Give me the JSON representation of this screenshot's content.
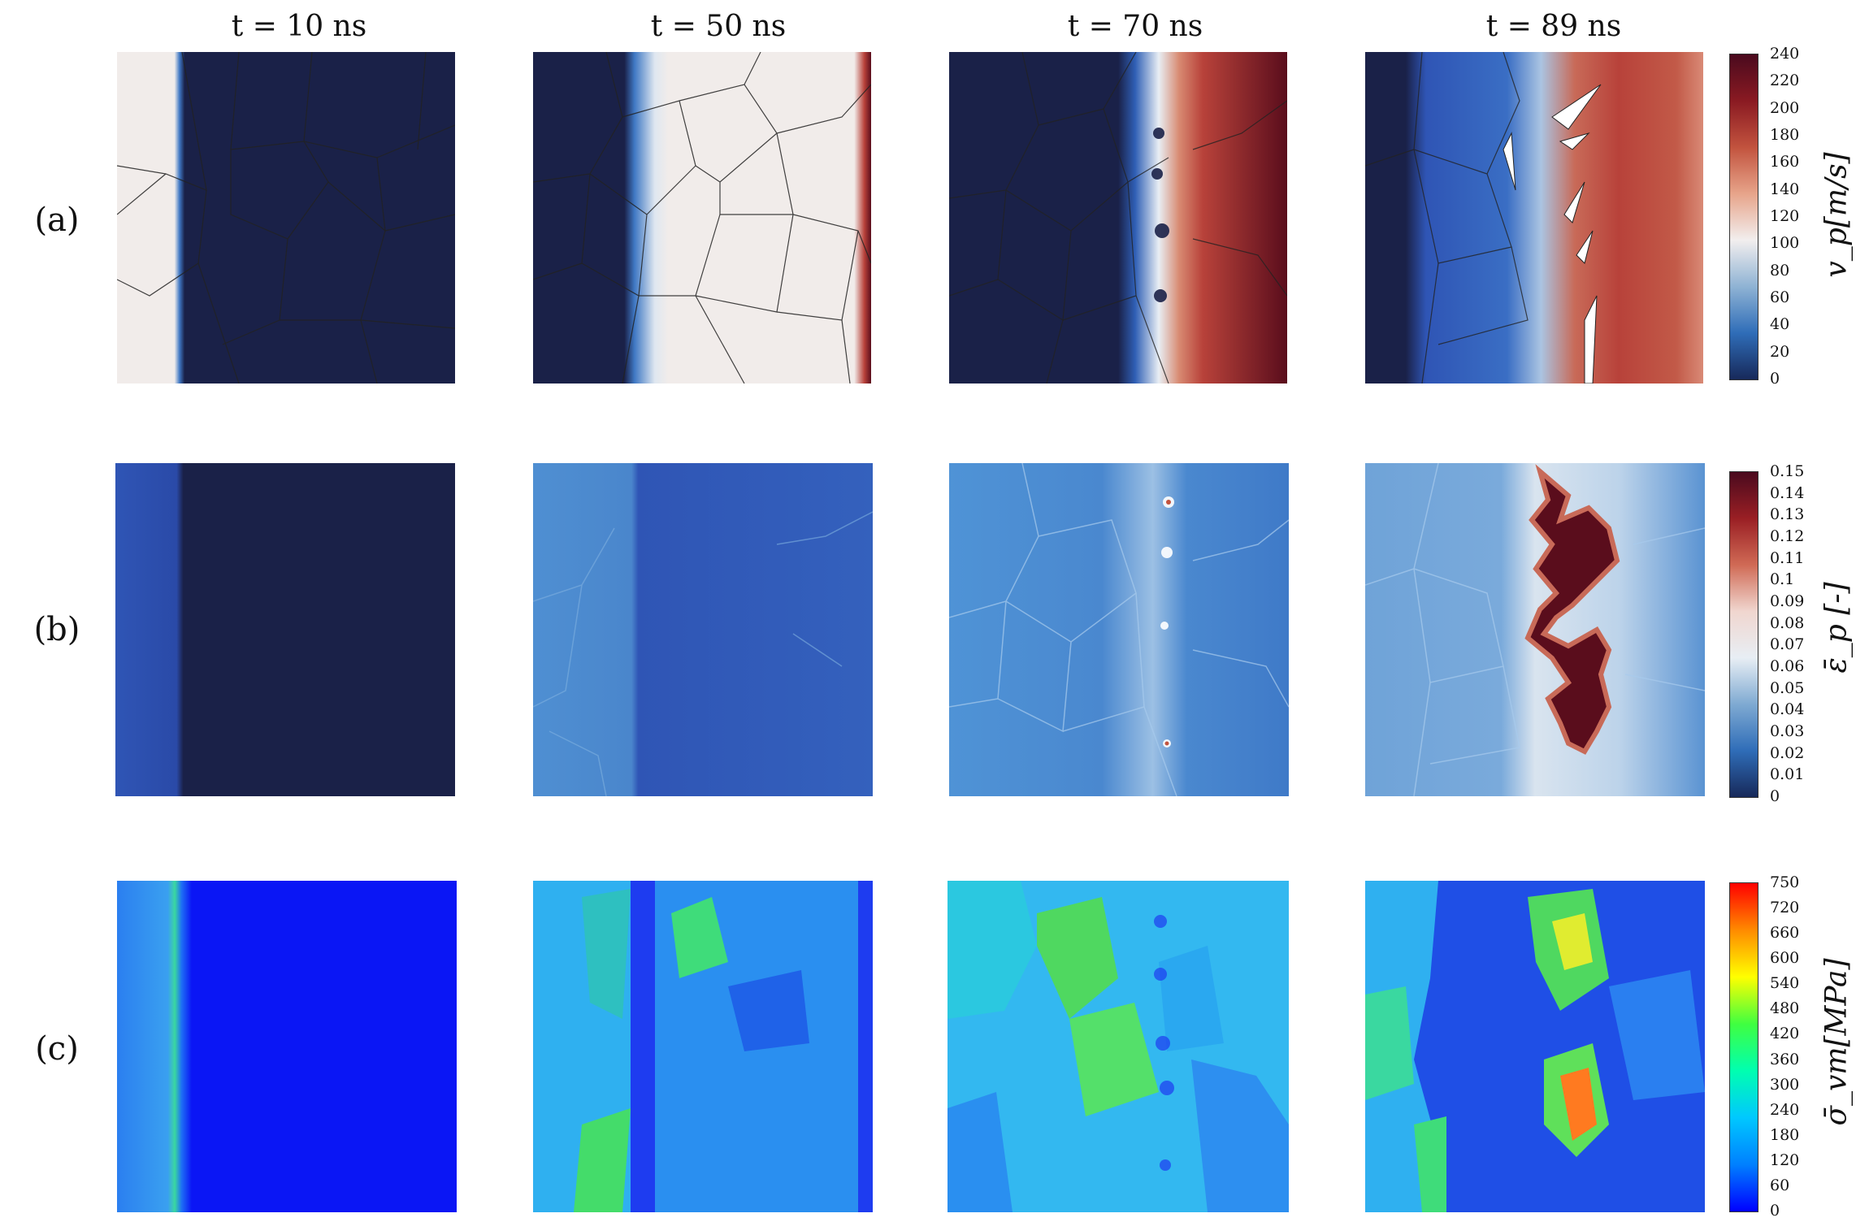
{
  "time_labels": [
    "t = 10 ns",
    "t = 50 ns",
    "t = 70 ns",
    "t = 89 ns"
  ],
  "row_labels": [
    "(a)",
    "(b)",
    "(c)"
  ],
  "colorbars": {
    "velocity": {
      "title": "v_p[m/s]",
      "ticks": [
        "240",
        "220",
        "200",
        "180",
        "160",
        "140",
        "120",
        "100",
        "80",
        "60",
        "40",
        "20",
        "0"
      ],
      "colors": [
        "#4a0a1e",
        "#8a1a22",
        "#c2533e",
        "#e7a48a",
        "#f2eeee",
        "#8fb3d4",
        "#2f6db8",
        "#17295a"
      ]
    },
    "plastic_strain": {
      "title": "ε̄_p [-]",
      "ticks": [
        "0.15",
        "0.14",
        "0.13",
        "0.12",
        "0.11",
        "0.1",
        "0.09",
        "0.08",
        "0.07",
        "0.06",
        "0.05",
        "0.04",
        "0.03",
        "0.02",
        "0.01",
        "0"
      ],
      "colors": [
        "#4a0a1e",
        "#9a1f24",
        "#d06a55",
        "#f0d6cf",
        "#e8eef4",
        "#7faad2",
        "#2f6db8",
        "#17295a"
      ]
    },
    "von_mises": {
      "title": "σ̄_vm[MPa]",
      "ticks": [
        "750",
        "720",
        "660",
        "600",
        "540",
        "480",
        "420",
        "360",
        "300",
        "240",
        "180",
        "120",
        "60",
        "0"
      ],
      "colors": [
        "#ff0000",
        "#ff8a00",
        "#ffff00",
        "#40ff40",
        "#00ffb0",
        "#00c8ff",
        "#0080ff",
        "#0000ff"
      ]
    }
  },
  "palette": {
    "dark_navy": "#1a2148",
    "light_grain": "#f1ecea",
    "dark_red": "#5a0d1c",
    "red": "#b8423a",
    "mid_blue": "#2f55b5",
    "light_blue": "#4f93d6",
    "pure_blue": "#0a16f5",
    "cyan": "#1ec8f0",
    "green": "#5fe05a",
    "yellow": "#e9f030",
    "orange": "#ff7a20"
  }
}
